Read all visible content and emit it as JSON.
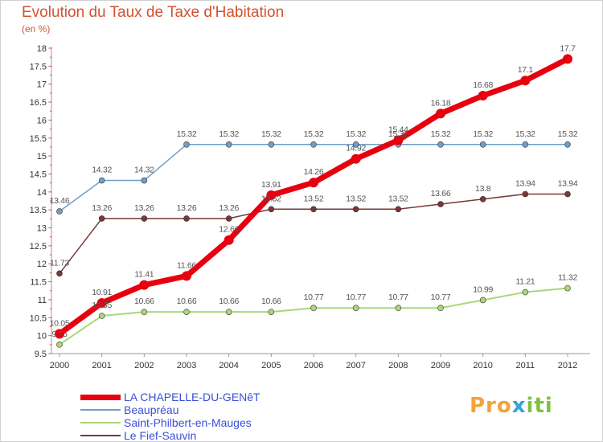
{
  "title": "Evolution du Taux de Taxe d'Habitation",
  "subtitle": "(en %)",
  "logo": {
    "parts": [
      "Pro",
      "x",
      "iti"
    ],
    "colors": [
      "#f2a33a",
      "#3aa0d8",
      "#7cc242"
    ]
  },
  "chart_data": {
    "type": "line",
    "x": [
      "2000",
      "2001",
      "2002",
      "2003",
      "2004",
      "2005",
      "2006",
      "2007",
      "2008",
      "2009",
      "2010",
      "2011",
      "2012"
    ],
    "ylim": [
      9.5,
      18
    ],
    "yticks": [
      "9.5",
      "10",
      "10.5",
      "11",
      "11.5",
      "12",
      "12.5",
      "13",
      "13.5",
      "14",
      "14.5",
      "15",
      "15.5",
      "16",
      "16.5",
      "17",
      "17.5",
      "18"
    ],
    "grid": false,
    "legend_position": "bottom-left",
    "series": [
      {
        "name": "LA CHAPELLE-DU-GENêT",
        "color": "#e8000f",
        "width": 7,
        "marker": 6,
        "values": [
          10.05,
          10.91,
          11.41,
          11.66,
          12.66,
          13.91,
          14.26,
          14.92,
          15.44,
          16.18,
          16.68,
          17.1,
          17.7
        ],
        "labels": [
          "10.05",
          "10.91",
          "11.41",
          "11.66",
          "12.66",
          "13.91",
          "14.26",
          "14.92",
          "15.44",
          "16.18",
          "16.68",
          "17.1",
          "17.7"
        ]
      },
      {
        "name": "Beaupréau",
        "color": "#6f9ec8",
        "width": 1.5,
        "marker": 3.5,
        "values": [
          13.46,
          14.32,
          14.32,
          15.32,
          15.32,
          15.32,
          15.32,
          15.32,
          15.32,
          15.32,
          15.32,
          15.32,
          15.32
        ],
        "labels": [
          "13.46",
          "14.32",
          "14.32",
          "15.32",
          "15.32",
          "15.32",
          "15.32",
          "15.32",
          "15.32",
          "15.32",
          "15.32",
          "15.32",
          "15.32"
        ]
      },
      {
        "name": "Saint-Philbert-en-Mauges",
        "color": "#a8d87a",
        "width": 2,
        "marker": 3.5,
        "values": [
          9.75,
          10.55,
          10.66,
          10.66,
          10.66,
          10.66,
          10.77,
          10.77,
          10.77,
          10.77,
          10.99,
          11.21,
          11.32
        ],
        "labels": [
          "9.75",
          "10.55",
          "10.66",
          "10.66",
          "10.66",
          "10.66",
          "10.77",
          "10.77",
          "10.77",
          "10.77",
          "10.99",
          "11.21",
          "11.32"
        ]
      },
      {
        "name": "Le Fief-Sauvin",
        "color": "#7a3838",
        "width": 1.5,
        "marker": 3.5,
        "values": [
          11.73,
          13.26,
          13.26,
          13.26,
          13.26,
          13.52,
          13.52,
          13.52,
          13.52,
          13.66,
          13.8,
          13.94,
          13.94
        ],
        "labels": [
          "11.73",
          "13.26",
          "13.26",
          "13.26",
          "13.26",
          "13.52",
          "13.52",
          "13.52",
          "13.52",
          "13.66",
          "13.8",
          "13.94",
          "13.94"
        ]
      }
    ]
  }
}
